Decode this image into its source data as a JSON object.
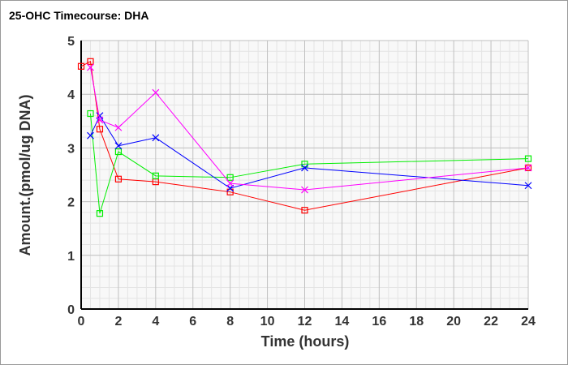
{
  "chart_data": {
    "type": "line",
    "title": "25-OHC Timecourse: DHA",
    "xlabel": "Time (hours)",
    "ylabel": "Amount.(pmol/ug DNA)",
    "xlim": [
      0,
      24
    ],
    "ylim": [
      0,
      5
    ],
    "xticks": [
      0,
      2,
      4,
      6,
      8,
      10,
      12,
      14,
      16,
      18,
      20,
      22,
      24
    ],
    "yticks": [
      0,
      1,
      2,
      3,
      4,
      5
    ],
    "grid": true,
    "series": [
      {
        "name": "red",
        "color": "#ff0000",
        "marker": "square",
        "x": [
          0,
          0.5,
          1,
          2,
          4,
          8,
          12,
          24
        ],
        "y": [
          4.52,
          4.61,
          3.35,
          2.42,
          2.37,
          2.18,
          1.84,
          2.63
        ]
      },
      {
        "name": "green",
        "color": "#00ee00",
        "marker": "square",
        "x": [
          0.5,
          1,
          2,
          4,
          8,
          12,
          24
        ],
        "y": [
          3.64,
          1.78,
          2.93,
          2.48,
          2.45,
          2.7,
          2.8
        ]
      },
      {
        "name": "blue",
        "color": "#0000ff",
        "marker": "x",
        "x": [
          0.5,
          1,
          2,
          4,
          8,
          12,
          24
        ],
        "y": [
          3.23,
          3.6,
          3.04,
          3.19,
          2.25,
          2.63,
          2.3
        ]
      },
      {
        "name": "magenta",
        "color": "#ff00ff",
        "marker": "x",
        "x": [
          0.5,
          1,
          2,
          4,
          8,
          12,
          24
        ],
        "y": [
          4.5,
          3.52,
          3.38,
          4.03,
          2.34,
          2.22,
          2.63
        ]
      }
    ]
  }
}
